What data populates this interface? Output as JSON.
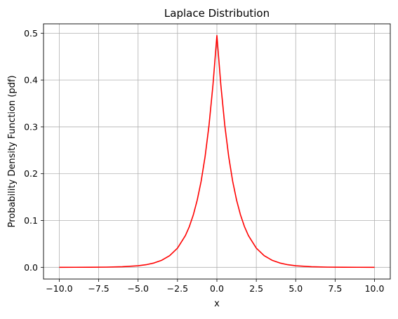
{
  "chart_data": {
    "type": "line",
    "title": "Laplace Distribution",
    "xlabel": "x",
    "ylabel": "Probability Density Function (pdf)",
    "xlim": [
      -11.0,
      11.0
    ],
    "ylim": [
      -0.025,
      0.52
    ],
    "xticks": [
      -10.0,
      -7.5,
      -5.0,
      -2.5,
      0.0,
      2.5,
      5.0,
      7.5,
      10.0
    ],
    "xtick_labels": [
      "−10.0",
      "−7.5",
      "−5.0",
      "−2.5",
      "0.0",
      "2.5",
      "5.0",
      "7.5",
      "10.0"
    ],
    "yticks": [
      0.0,
      0.1,
      0.2,
      0.3,
      0.4,
      0.5
    ],
    "ytick_labels": [
      "0.0",
      "0.1",
      "0.2",
      "0.3",
      "0.4",
      "0.5"
    ],
    "grid": true,
    "series": [
      {
        "color": "#ff0000",
        "x": [
          -10.0,
          -9.0,
          -8.0,
          -7.0,
          -6.0,
          -5.0,
          -4.5,
          -4.0,
          -3.5,
          -3.0,
          -2.5,
          -2.0,
          -1.75,
          -1.5,
          -1.25,
          -1.0,
          -0.75,
          -0.5,
          -0.25,
          0.0,
          0.25,
          0.5,
          0.75,
          1.0,
          1.25,
          1.5,
          1.75,
          2.0,
          2.5,
          3.0,
          3.5,
          4.0,
          4.5,
          5.0,
          6.0,
          7.0,
          8.0,
          9.0,
          10.0
        ],
        "y": [
          2.3e-05,
          6.2e-05,
          0.000168,
          0.000456,
          0.00124,
          0.00337,
          0.00555,
          0.00916,
          0.0151,
          0.0249,
          0.041,
          0.0677,
          0.0869,
          0.1116,
          0.1433,
          0.1839,
          0.2362,
          0.3033,
          0.3894,
          0.495,
          0.3894,
          0.3033,
          0.2362,
          0.1839,
          0.1433,
          0.1116,
          0.0869,
          0.0677,
          0.041,
          0.0249,
          0.0151,
          0.00916,
          0.00555,
          0.00337,
          0.00124,
          0.000456,
          0.000168,
          6.2e-05,
          2.3e-05
        ]
      }
    ]
  }
}
